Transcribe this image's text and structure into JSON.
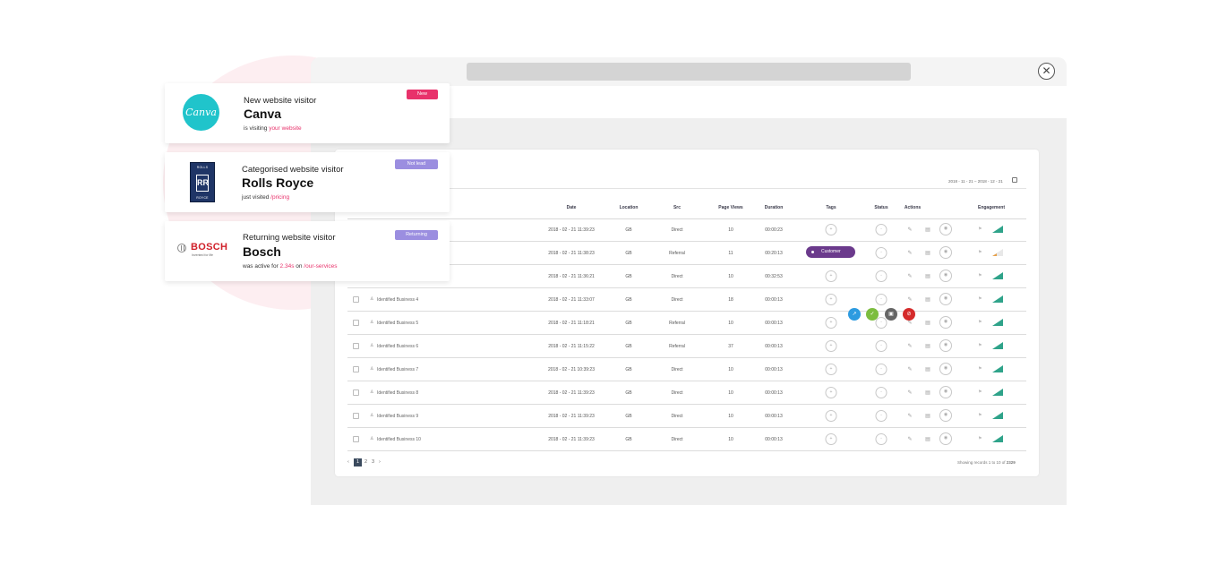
{
  "colors": {
    "accent": "#e8326b",
    "customer_tag": "#6b3a8c",
    "engagement": "#2fa38a",
    "badge_new": "#e8326b",
    "badge_not_lead": "#9b8ee0",
    "badge_returning": "#9b8ee0"
  },
  "window": {
    "close_icon": "close-icon"
  },
  "filter": {
    "date_range": "2018 - 11 - 21 – 2018 - 12 - 21"
  },
  "table": {
    "headers": {
      "date": "Date",
      "location": "Location",
      "src": "Src",
      "page_views": "Page Views",
      "duration": "Duration",
      "tags": "Tags",
      "status": "Status",
      "actions": "Actions",
      "engagement": "Engagement"
    },
    "rows": [
      {
        "name": "",
        "date": "2018 - 02 - 21 11:39:23",
        "location": "GB",
        "src": "Direct",
        "page_views": "10",
        "duration": "00:00:23"
      },
      {
        "name": "",
        "date": "2018 - 02 - 21 11:38:23",
        "location": "GB",
        "src": "Referral",
        "page_views": "11",
        "duration": "00:20:13"
      },
      {
        "name": "",
        "date": "2018 - 02 - 21 11:36:21",
        "location": "GB",
        "src": "Direct",
        "page_views": "10",
        "duration": "00:32:53"
      },
      {
        "name": "Identified Business 4",
        "date": "2018 - 02 - 21 11:33:07",
        "location": "GB",
        "src": "Direct",
        "page_views": "18",
        "duration": "00:00:13"
      },
      {
        "name": "Identified Business 5",
        "date": "2018 - 02 - 21 11:18:21",
        "location": "GB",
        "src": "Referral",
        "page_views": "10",
        "duration": "00:00:13"
      },
      {
        "name": "Identified Business 6",
        "date": "2018 - 02 - 21 11:15:22",
        "location": "GB",
        "src": "Referral",
        "page_views": "37",
        "duration": "00:00:13"
      },
      {
        "name": "Identified Business 7",
        "date": "2018 - 02 - 21 10:39:23",
        "location": "GB",
        "src": "Direct",
        "page_views": "10",
        "duration": "00:00:13"
      },
      {
        "name": "Identified Business 8",
        "date": "2018 - 02 - 21 11:39:23",
        "location": "GB",
        "src": "Direct",
        "page_views": "10",
        "duration": "00:00:13"
      },
      {
        "name": "Identified Business 9",
        "date": "2018 - 02 - 21 11:39:23",
        "location": "GB",
        "src": "Direct",
        "page_views": "10",
        "duration": "00:00:13"
      },
      {
        "name": "Identified Business 10",
        "date": "2018 - 02 - 21 11:39:23",
        "location": "GB",
        "src": "Direct",
        "page_views": "10",
        "duration": "00:00:13"
      }
    ],
    "customer_tag": "Customer",
    "quick_actions": [
      "#2d9be0",
      "#7cbd3f",
      "#666666",
      "#d52b2b"
    ]
  },
  "pagination": {
    "prev": "‹",
    "pages": [
      "1",
      "2",
      "3"
    ],
    "next": "›",
    "records_prefix": "Showing records 1 to 10 of ",
    "records_total": "2329"
  },
  "cards": [
    {
      "subtitle": "New website visitor",
      "company": "Canva",
      "detail_prefix": "is visiting ",
      "detail_highlight": "your website",
      "detail_suffix": "",
      "badge": "New",
      "logo_text": "Canva"
    },
    {
      "subtitle": "Categorised website visitor",
      "company": "Rolls Royce",
      "detail_prefix": "just visited ",
      "detail_highlight": "/pricing",
      "detail_suffix": "",
      "badge": "Not lead",
      "logo_top": "ROLLS",
      "logo_mono": "RR",
      "logo_bottom": "ROYCE"
    },
    {
      "subtitle": "Returning website visitor",
      "company": "Bosch",
      "detail_prefix": "was active for ",
      "detail_highlight": "2.34s",
      "detail_mid": " on ",
      "detail_highlight2": "/our-services",
      "badge": "Returning",
      "logo_word": "BOSCH",
      "logo_tag": "Invented for life"
    }
  ]
}
